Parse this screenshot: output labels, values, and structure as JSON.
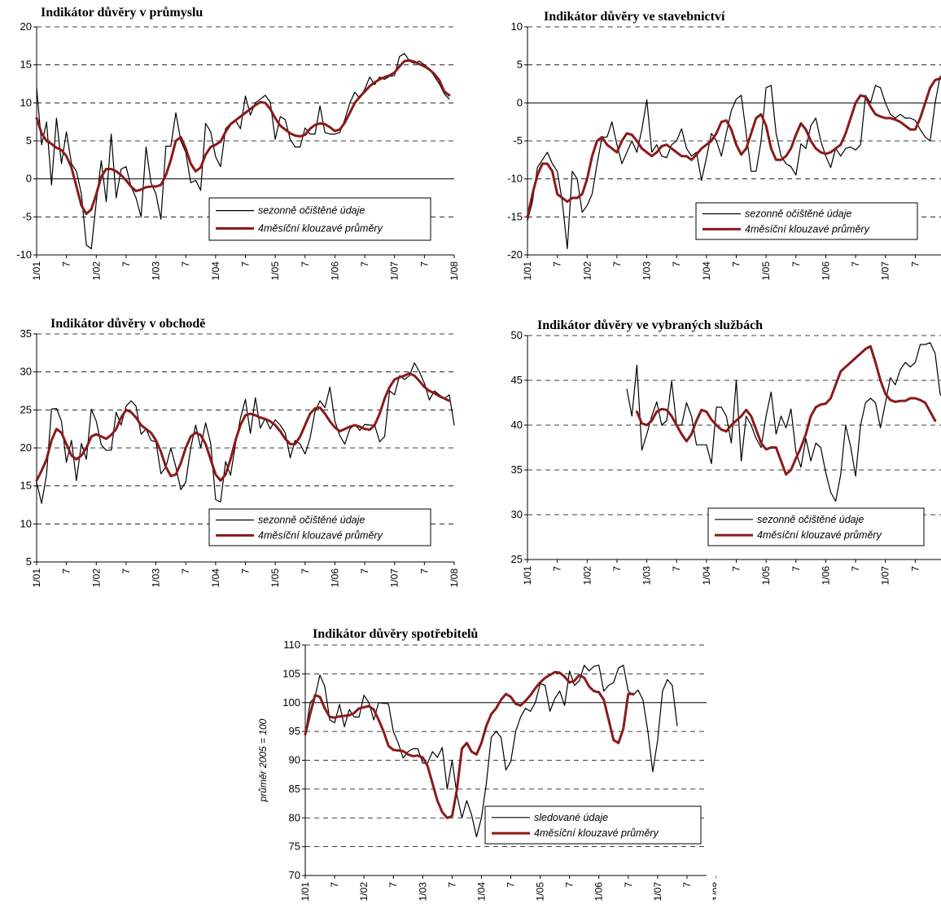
{
  "colors": {
    "raw_series": "#000000",
    "ma_series": "#8b1a1a",
    "grid": "#000000"
  },
  "chart_data": [
    {
      "type": "line",
      "title": "Indikátor důvěry v průmyslu",
      "ylim": [
        -10,
        20
      ],
      "yticks": [
        -10,
        -5,
        0,
        5,
        10,
        15,
        20
      ],
      "x_ticks": [
        "1/01",
        "7",
        "1/02",
        "7",
        "1/03",
        "7",
        "1/04",
        "7",
        "1/05",
        "7",
        "1/06",
        "7",
        "1/07",
        "7",
        "1/08"
      ],
      "grid": "horizontal dashed",
      "legend_position": "bottom-right",
      "series": [
        {
          "name": "sezonně očištěné údaje",
          "color": "#000000",
          "values": [
            12,
            4.5,
            7.5,
            -0.8,
            8,
            2,
            6.2,
            2,
            1,
            -2,
            -8.7,
            -9.2,
            -3,
            2.4,
            -3,
            5.9,
            -2.5,
            1.3,
            1.6,
            -1,
            -2.5,
            -5,
            4.2,
            -0.5,
            -2,
            -5.3,
            4.3,
            4.3,
            8.7,
            5,
            3.5,
            -0.5,
            -0.2,
            -1.5,
            7.3,
            6.2,
            2.9,
            1.6,
            6.6,
            7.3,
            7.7,
            6.6,
            10.9,
            8.4,
            10,
            10.5,
            11,
            10.1,
            5.2,
            8.2,
            7.8,
            5.2,
            4.2,
            4.2,
            6.7,
            5.9,
            5.9,
            9.6,
            6.1,
            5.9,
            5.9,
            6.1,
            7.8,
            10,
            11.4,
            10.6,
            11.8,
            13.4,
            12.4,
            13.4,
            13.1,
            13.5,
            13.6,
            16.1,
            16.5,
            15.5,
            15.2,
            15.5,
            15,
            14.5,
            13.5,
            12.5,
            11.2,
            10.5
          ]
        },
        {
          "name": "4měsíční klouzavé průměry",
          "color": "#8b1a1a",
          "values": [
            8,
            6,
            5,
            4.6,
            4.1,
            3.8,
            3,
            1.5,
            -1,
            -3.5,
            -4.6,
            -4,
            -2,
            0.3,
            1.3,
            1.3,
            1,
            0.5,
            -0.2,
            -1,
            -1.6,
            -1.4,
            -1.1,
            -1,
            -1,
            -0.8,
            0.5,
            2.5,
            5,
            5.5,
            4,
            2,
            1,
            1.5,
            3.2,
            4.2,
            4.5,
            4.9,
            6.2,
            7.2,
            7.7,
            8.2,
            8.7,
            9.2,
            9.7,
            10.1,
            10,
            9.2,
            8,
            7,
            6.5,
            6,
            5.7,
            5.6,
            5.8,
            6.6,
            7.1,
            7.3,
            7.2,
            6.8,
            6.3,
            6.5,
            7.4,
            8.7,
            10,
            10.8,
            11.5,
            12.2,
            12.7,
            13.1,
            13.4,
            13.6,
            14,
            14.8,
            15.5,
            15.6,
            15.4,
            15.1,
            14.8,
            14.4,
            13.8,
            13,
            11.5,
            11
          ]
        }
      ]
    },
    {
      "type": "line",
      "title": "Indikátor důvěry ve stavebnictví",
      "ylim": [
        -20,
        10
      ],
      "yticks": [
        -20,
        -15,
        -10,
        -5,
        0,
        5,
        10
      ],
      "x_ticks": [
        "1/01",
        "7",
        "1/02",
        "7",
        "1/03",
        "7",
        "1/04",
        "7",
        "1/05",
        "7",
        "1/06",
        "7",
        "1/07",
        "7",
        "1/08"
      ],
      "grid": "horizontal dashed",
      "legend_position": "bottom-right",
      "series": [
        {
          "name": "sezonně očištěné údaje",
          "color": "#000000",
          "values": [
            -15.5,
            -13,
            -8.5,
            -7.5,
            -6.5,
            -8,
            -9,
            -13,
            -19.2,
            -9,
            -10,
            -14.4,
            -13.5,
            -12,
            -8,
            -4.5,
            -4.5,
            -2.5,
            -5.5,
            -8,
            -6.5,
            -5,
            -6.5,
            -3.5,
            0.4,
            -6.5,
            -5.5,
            -7,
            -7.2,
            -5.5,
            -5,
            -3.4,
            -6,
            -7,
            -6.5,
            -10.2,
            -7.2,
            -4,
            -5,
            -7,
            -4,
            -1,
            0.5,
            1,
            -4,
            -9,
            -9,
            -5,
            2,
            2.3,
            -4,
            -7,
            -8,
            -8.4,
            -9.5,
            -5.4,
            -6,
            -3,
            -2,
            -5,
            -7,
            -8.5,
            -6,
            -7,
            -6,
            -5.8,
            -6.2,
            -5.5,
            1,
            0,
            2.3,
            2,
            0,
            -1.5,
            -2,
            -1.5,
            -2,
            -2,
            -2.3,
            -3.5,
            -4.5,
            -5,
            0,
            3.5,
            3.5,
            2,
            4.5,
            3,
            3,
            3.2
          ]
        },
        {
          "name": "4měsíční klouzavé průměry",
          "color": "#8b1a1a",
          "values": [
            -15,
            -12,
            -9.5,
            -8,
            -8,
            -9,
            -12,
            -12.5,
            -13,
            -12.5,
            -12.5,
            -12,
            -10,
            -7,
            -5,
            -4.5,
            -5.5,
            -6,
            -6.5,
            -5,
            -4,
            -4.2,
            -5,
            -6,
            -6.5,
            -7,
            -6.5,
            -5.7,
            -5.5,
            -6,
            -6.5,
            -7,
            -7,
            -7.5,
            -6.8,
            -6,
            -5.5,
            -5,
            -4,
            -2.5,
            -2.3,
            -3.5,
            -5.5,
            -6.8,
            -6,
            -4,
            -2,
            -1.5,
            -3,
            -6,
            -7.5,
            -7.5,
            -7,
            -6,
            -4.2,
            -2.7,
            -3.5,
            -5,
            -6,
            -6.5,
            -6.7,
            -6.5,
            -6,
            -5.5,
            -4,
            -2,
            0,
            1,
            0.8,
            -0.5,
            -1.5,
            -1.8,
            -2,
            -2,
            -2.2,
            -2.5,
            -3,
            -3.5,
            -3.5,
            -2,
            0,
            2,
            3,
            3.2,
            3.1
          ]
        }
      ]
    },
    {
      "type": "line",
      "title": "Indikátor důvěry v obchodě",
      "ylim": [
        5,
        35
      ],
      "yticks": [
        5,
        10,
        15,
        20,
        25,
        30,
        35
      ],
      "x_ticks": [
        "1/01",
        "7",
        "1/02",
        "7",
        "1/03",
        "7",
        "1/04",
        "7",
        "1/05",
        "7",
        "1/06",
        "7",
        "1/07",
        "7",
        "1/08"
      ],
      "grid": "horizontal dashed",
      "legend_position": "bottom-right",
      "series": [
        {
          "name": "sezonně očištěné údaje",
          "color": "#000000",
          "values": [
            15.5,
            12.7,
            16.5,
            25.1,
            25.2,
            23.5,
            18.1,
            21,
            15.7,
            20.6,
            18.5,
            25.1,
            23.5,
            20.4,
            19.7,
            19.7,
            24.7,
            23,
            25.5,
            26.2,
            25.5,
            21.8,
            22.5,
            21,
            20.8,
            16.6,
            17.5,
            20,
            17.5,
            14.5,
            15.5,
            20,
            23,
            20,
            23.3,
            20.6,
            13.2,
            12.9,
            18.2,
            16.4,
            20.5,
            23.9,
            26.4,
            21.9,
            26.6,
            22.6,
            23.9,
            22.5,
            23.7,
            23,
            22,
            18.7,
            21,
            20.5,
            19.2,
            21.3,
            24.8,
            26.2,
            25.3,
            28,
            23.5,
            21.6,
            20.5,
            22.5,
            23.1,
            22.3,
            23.1,
            23,
            23,
            20.8,
            21.5,
            27.5,
            27,
            29.5,
            29,
            29.5,
            31.2,
            30,
            28.5,
            26.3,
            27.5,
            27,
            26.5,
            27,
            23
          ]
        },
        {
          "name": "4měsíční klouzavé průměry",
          "color": "#8b1a1a",
          "values": [
            15.7,
            17,
            18.5,
            21,
            22.5,
            22,
            20.5,
            19,
            18.5,
            19,
            20,
            21.5,
            21.8,
            21.5,
            21.2,
            21.7,
            22.5,
            24,
            25,
            24.7,
            24,
            23,
            22.5,
            22,
            21,
            19.5,
            17.5,
            16.3,
            16.5,
            18,
            20,
            21.5,
            22,
            21.7,
            20.5,
            18.5,
            16.5,
            15.7,
            16.5,
            18.5,
            21,
            23,
            24.3,
            24.5,
            24.3,
            24,
            23.8,
            23.5,
            23,
            22.2,
            21.2,
            20.5,
            20.5,
            21.5,
            23,
            24.5,
            25.2,
            25.3,
            24.5,
            23.5,
            22.7,
            22.2,
            22.5,
            22.8,
            23,
            22.8,
            22.5,
            22.4,
            23,
            24.5,
            26.5,
            28,
            29,
            29.3,
            29.5,
            29.8,
            29.5,
            28.8,
            28,
            27.5,
            27.2,
            26.8,
            26.5,
            26.2
          ]
        }
      ]
    },
    {
      "type": "line",
      "title": "Indikátor důvěry ve vybraných službách",
      "ylim": [
        25,
        50
      ],
      "yticks": [
        25,
        30,
        35,
        40,
        45,
        50
      ],
      "x_ticks": [
        "1/01",
        "7",
        "1/02",
        "7",
        "1/03",
        "7",
        "1/04",
        "7",
        "1/05",
        "7",
        "1/06",
        "7",
        "1/07",
        "7",
        "1/08"
      ],
      "grid": "horizontal dashed",
      "legend_position": "bottom-right",
      "x_start_index": 20,
      "series": [
        {
          "name": "sezonně očištěné údaje",
          "color": "#000000",
          "values": [
            44,
            41,
            46.7,
            37.2,
            39,
            41,
            42.6,
            40,
            40.5,
            44.9,
            40,
            40,
            42.5,
            41,
            37.8,
            37.8,
            37.8,
            35.7,
            42,
            42,
            41,
            38,
            45,
            36,
            41,
            40,
            38.5,
            37.5,
            41,
            43.7,
            39,
            41,
            39.7,
            41.8,
            37,
            35.3,
            38.5,
            36,
            38,
            37.5,
            34.7,
            32.5,
            31.5,
            34.5,
            40,
            37.6,
            34.3,
            40,
            42.5,
            43,
            42.5,
            39.7,
            42.5,
            45.3,
            44.5,
            46.2,
            47,
            46.5,
            47,
            49,
            49,
            49.2,
            48,
            43.5,
            42.5,
            41.5,
            43,
            43,
            43,
            42,
            44.3,
            42.5,
            41.5,
            41,
            38
          ]
        },
        {
          "name": "4měsíční klouzavé průměry",
          "color": "#8b1a1a",
          "values": [
            null,
            null,
            41.5,
            40.2,
            40,
            40.5,
            41.5,
            41.8,
            41.7,
            41,
            40,
            39,
            38.2,
            39,
            40.5,
            41.7,
            41.5,
            40.6,
            40,
            39.5,
            39.3,
            40,
            40.5,
            41,
            41.7,
            41,
            39.5,
            38,
            37.3,
            37.5,
            37.5,
            36,
            34.5,
            35,
            36.3,
            37.5,
            39,
            41,
            42,
            42.3,
            42.4,
            43,
            44.5,
            46,
            46.5,
            47,
            47.5,
            48,
            48.5,
            48.8,
            47,
            45,
            43.5,
            42.8,
            42.6,
            42.7,
            42.7,
            43,
            43,
            42.8,
            42.5,
            41.5,
            40.5
          ]
        }
      ]
    },
    {
      "type": "line",
      "title": "Indikátor důvěry spotřebitelů",
      "ylabel": "průměr 2005 = 100",
      "ylim": [
        70,
        110
      ],
      "yticks": [
        70,
        75,
        80,
        85,
        90,
        95,
        100,
        105,
        110
      ],
      "x_ticks": [
        "1/01",
        "7",
        "1/02",
        "7",
        "1/03",
        "7",
        "1/04",
        "7",
        "1/05",
        "7",
        "1/06",
        "7",
        "1/07",
        "7",
        "1/08"
      ],
      "grid": "horizontal dashed (100 solid)",
      "legend_position": "bottom-right",
      "series": [
        {
          "name": "sledované údaje",
          "color": "#000000",
          "values": [
            94.5,
            100,
            101,
            104.8,
            102.8,
            97,
            96.5,
            99.7,
            95.8,
            98.8,
            97.5,
            97.5,
            101.3,
            100,
            97,
            100,
            99.9,
            99.8,
            95,
            93,
            90.4,
            91.5,
            92,
            92,
            89.5,
            89.5,
            91.5,
            90.5,
            92.2,
            85,
            90,
            84,
            80,
            83,
            80.5,
            76.7,
            80,
            86,
            94,
            95,
            94,
            88.3,
            89.8,
            95,
            97.5,
            99,
            98.5,
            100,
            103.3,
            103,
            98.5,
            100.7,
            102,
            99.5,
            105.5,
            103,
            103.8,
            106.5,
            105.5,
            106.3,
            106.5,
            102,
            103,
            103.5,
            106,
            106.5,
            102,
            101.3,
            102.2,
            100.5,
            95,
            88,
            93.5,
            102,
            104,
            103,
            96
          ]
        },
        {
          "name": "4měsíční klouzavé průměry",
          "color": "#8b1a1a",
          "values": [
            94.5,
            98,
            101.3,
            101,
            99,
            97.5,
            97.4,
            97.6,
            97.7,
            97.8,
            98.2,
            99,
            99.2,
            99.4,
            98.8,
            97,
            95,
            92.5,
            91.8,
            91.7,
            91.6,
            91,
            90.7,
            90.8,
            90.5,
            89,
            86,
            83,
            81,
            80,
            80.3,
            85,
            92,
            93,
            91.5,
            91,
            93,
            96,
            98,
            99,
            100.5,
            101.5,
            101,
            99.8,
            99.5,
            100.3,
            101.3,
            102.5,
            103.5,
            104.3,
            104.8,
            105.3,
            105.2,
            104.5,
            103.5,
            103.8,
            104.8,
            104.3,
            102.8,
            102,
            101.8,
            100.5,
            97,
            93.5,
            93,
            95.5,
            101.5,
            101.5
          ]
        }
      ]
    }
  ]
}
